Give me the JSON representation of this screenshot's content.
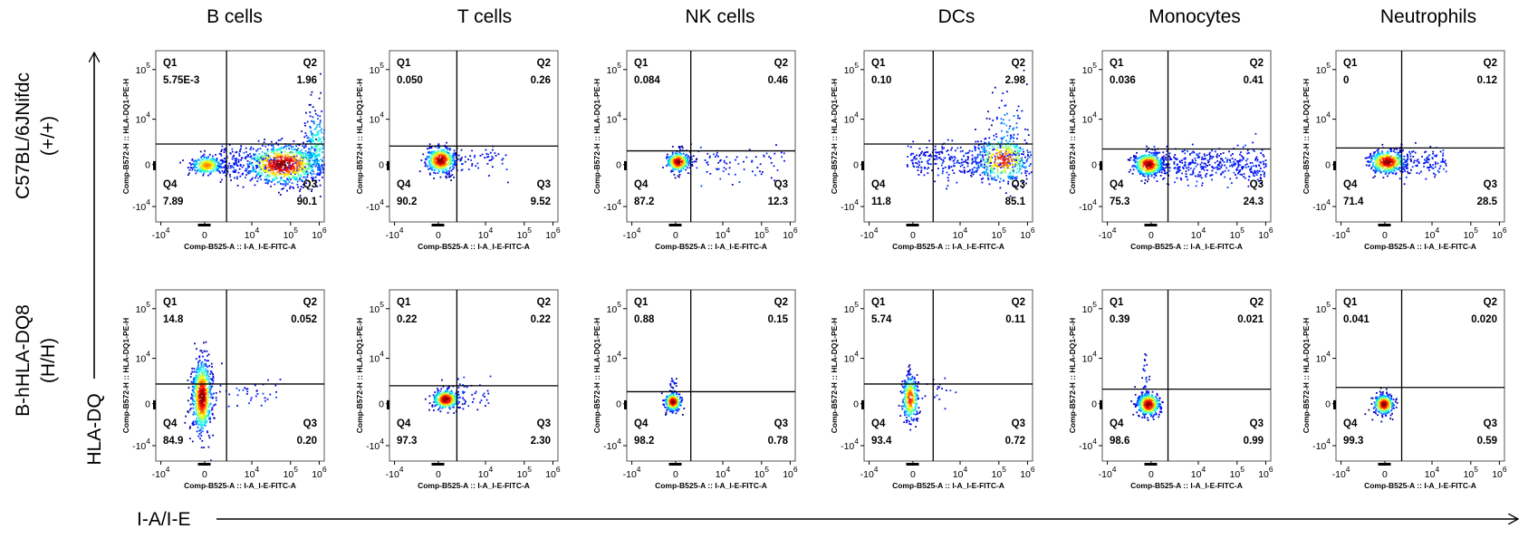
{
  "columns": [
    "B cells",
    "T cells",
    "NK cells",
    "DCs",
    "Monocytes",
    "Neutrophils"
  ],
  "rows": [
    {
      "line1": "C57BL/6JNifdc",
      "line2": "(+/+)"
    },
    {
      "line1": "B-hHLA-DQ8",
      "line2": "(H/H)"
    }
  ],
  "y_axis_title": "HLA-DQ",
  "x_axis_title": "I-A/I-E",
  "plot_x_label": "Comp-B525-A :: I-A_I-E-FITC-A",
  "plot_y_label": "Comp-B572-H :: HLA-DQ1-PE-H",
  "x_ticks": [
    {
      "base": "-10",
      "exp": "4"
    },
    {
      "base": "0"
    },
    {
      "base": "10",
      "exp": "4"
    },
    {
      "base": "10",
      "exp": "5"
    },
    {
      "base": "10",
      "exp": "6"
    }
  ],
  "y_ticks": [
    {
      "base": "10",
      "exp": "5"
    },
    {
      "base": "10",
      "exp": "4"
    },
    {
      "base": "0"
    },
    {
      "base": "-10",
      "exp": "4"
    }
  ],
  "quadrant_names": [
    "Q1",
    "Q2",
    "Q3",
    "Q4"
  ],
  "panels": [
    [
      [
        "5.75E-3",
        "1.96",
        "90.1",
        "7.89"
      ],
      [
        "0.050",
        "0.26",
        "9.52",
        "90.2"
      ],
      [
        "0.084",
        "0.46",
        "12.3",
        "87.2"
      ],
      [
        "0.10",
        "2.98",
        "85.1",
        "11.8"
      ],
      [
        "0.036",
        "0.41",
        "24.3",
        "75.3"
      ],
      [
        "0",
        "0.12",
        "28.5",
        "71.4"
      ]
    ],
    [
      [
        "14.8",
        "0.052",
        "0.20",
        "84.9"
      ],
      [
        "0.22",
        "0.22",
        "2.30",
        "97.3"
      ],
      [
        "0.88",
        "0.15",
        "0.78",
        "98.2"
      ],
      [
        "5.74",
        "0.11",
        "0.72",
        "93.4"
      ],
      [
        "0.39",
        "0.021",
        "0.99",
        "98.6"
      ],
      [
        "0.041",
        "0.020",
        "0.59",
        "99.3"
      ]
    ]
  ]
}
